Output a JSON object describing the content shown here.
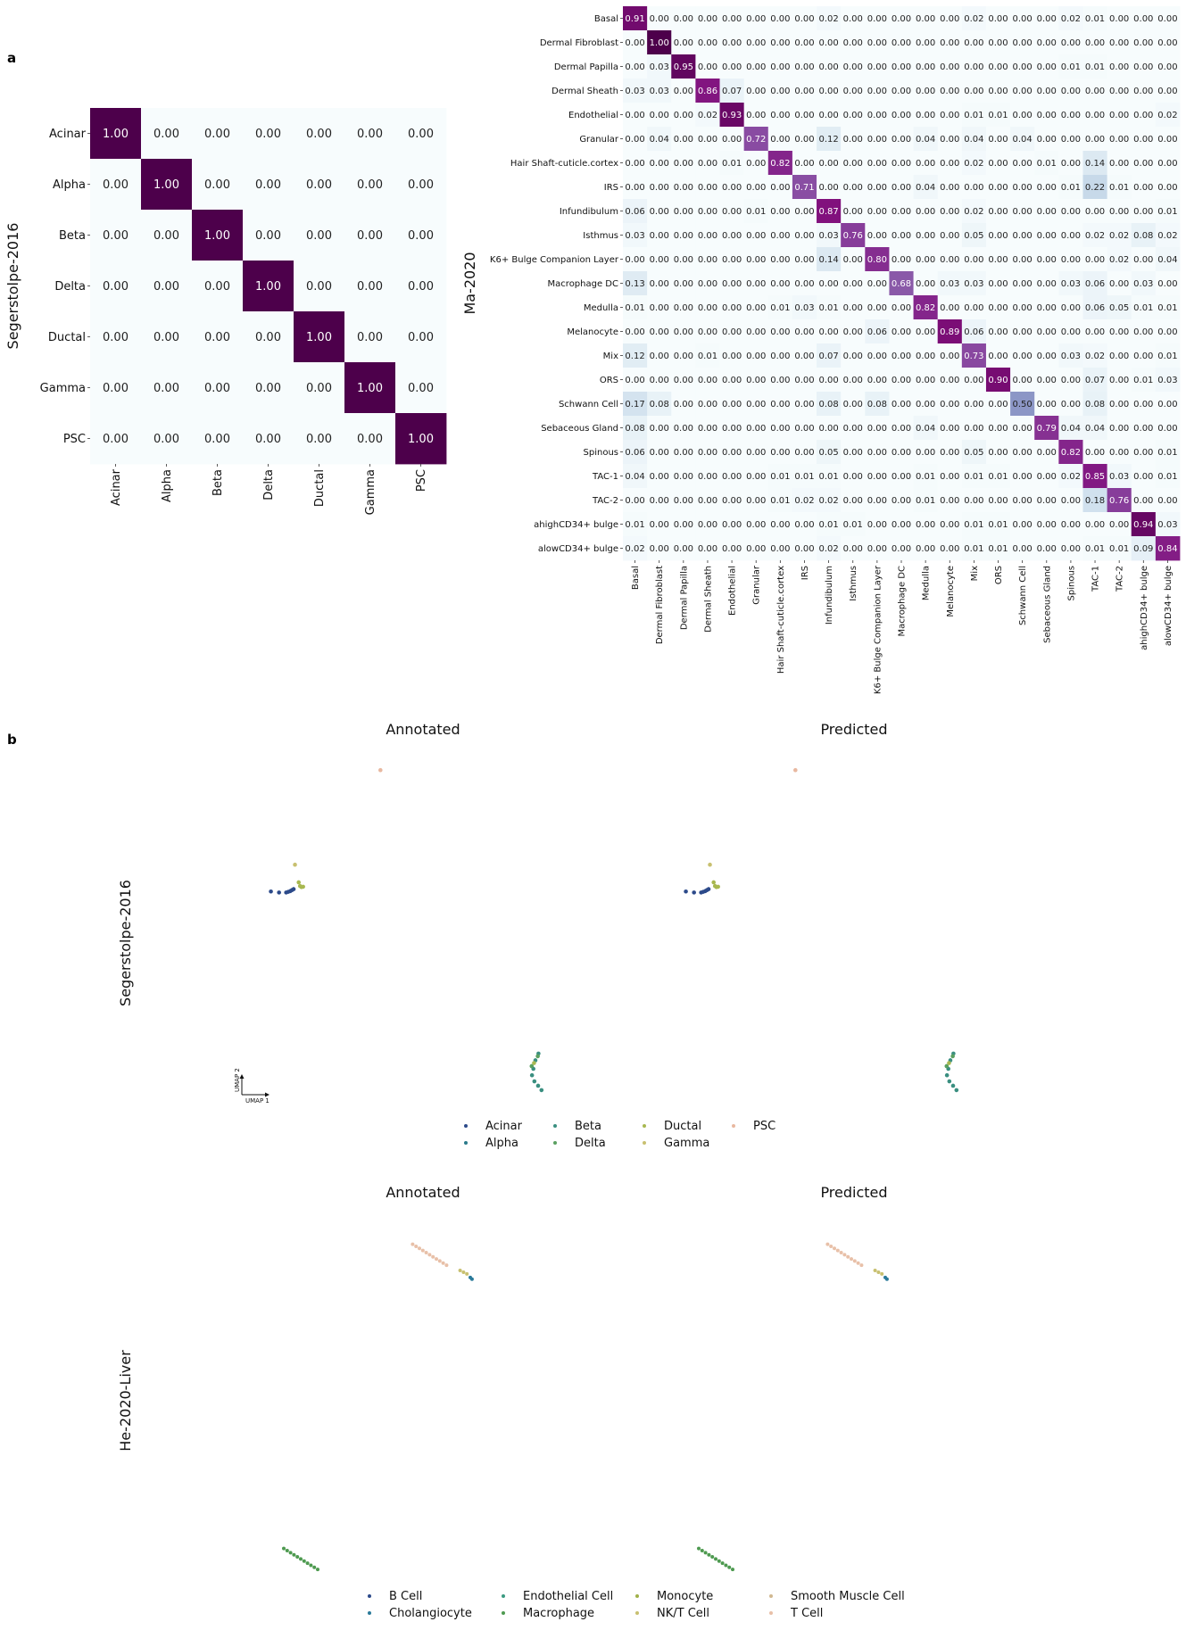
{
  "figure": {
    "panel_a_label": "a",
    "panel_b_label": "b"
  },
  "chart_data": [
    {
      "type": "heatmap",
      "id": "heatmap-segerstolpe",
      "ylabel": "Segerstolpe-2016",
      "rows": [
        "Acinar",
        "Alpha",
        "Beta",
        "Delta",
        "Ductal",
        "Gamma",
        "PSC"
      ],
      "cols": [
        "Acinar",
        "Alpha",
        "Beta",
        "Delta",
        "Ductal",
        "Gamma",
        "PSC"
      ],
      "values": [
        [
          1.0,
          0.0,
          0.0,
          0.0,
          0.0,
          0.0,
          0.0
        ],
        [
          0.0,
          1.0,
          0.0,
          0.0,
          0.0,
          0.0,
          0.0
        ],
        [
          0.0,
          0.0,
          1.0,
          0.0,
          0.0,
          0.0,
          0.0
        ],
        [
          0.0,
          0.0,
          0.0,
          1.0,
          0.0,
          0.0,
          0.0
        ],
        [
          0.0,
          0.0,
          0.0,
          0.0,
          1.0,
          0.0,
          0.0
        ],
        [
          0.0,
          0.0,
          0.0,
          0.0,
          0.0,
          1.0,
          0.0
        ],
        [
          0.0,
          0.0,
          0.0,
          0.0,
          0.0,
          0.0,
          1.0
        ]
      ],
      "colormap": [
        "#f7fcfd",
        "#e0ecf4",
        "#bfd3e6",
        "#9ebcda",
        "#8c96c6",
        "#8c6bb1",
        "#88419d",
        "#810f7c",
        "#4d004b"
      ]
    },
    {
      "type": "heatmap",
      "id": "heatmap-ma2020",
      "ylabel": "Ma-2020",
      "rows": [
        "Basal",
        "Dermal Fibroblast",
        "Dermal Papilla",
        "Dermal Sheath",
        "Endothelial",
        "Granular",
        "Hair Shaft-cuticle.cortex",
        "IRS",
        "Infundibulum",
        "Isthmus",
        "K6+ Bulge Companion Layer",
        "Macrophage DC",
        "Medulla",
        "Melanocyte",
        "Mix",
        "ORS",
        "Schwann Cell",
        "Sebaceous Gland",
        "Spinous",
        "TAC-1",
        "TAC-2",
        "ahighCD34+ bulge",
        "alowCD34+ bulge"
      ],
      "cols": [
        "Basal",
        "Dermal Fibroblast",
        "Dermal Papilla",
        "Dermal Sheath",
        "Endothelial",
        "Granular",
        "Hair Shaft-cuticle.cortex",
        "IRS",
        "Infundibulum",
        "Isthmus",
        "K6+ Bulge Companion Layer",
        "Macrophage DC",
        "Medulla",
        "Melanocyte",
        "Mix",
        "ORS",
        "Schwann Cell",
        "Sebaceous Gland",
        "Spinous",
        "TAC-1",
        "TAC-2",
        "ahighCD34+ bulge",
        "alowCD34+ bulge"
      ],
      "values": [
        [
          0.91,
          0.0,
          0.0,
          0.0,
          0.0,
          0.0,
          0.0,
          0.0,
          0.02,
          0.0,
          0.0,
          0.0,
          0.0,
          0.0,
          0.02,
          0.0,
          0.0,
          0.0,
          0.02,
          0.01,
          0.0,
          0.0,
          0.0
        ],
        [
          0.0,
          1.0,
          0.0,
          0.0,
          0.0,
          0.0,
          0.0,
          0.0,
          0.0,
          0.0,
          0.0,
          0.0,
          0.0,
          0.0,
          0.0,
          0.0,
          0.0,
          0.0,
          0.0,
          0.0,
          0.0,
          0.0,
          0.0
        ],
        [
          0.0,
          0.03,
          0.95,
          0.0,
          0.0,
          0.0,
          0.0,
          0.0,
          0.0,
          0.0,
          0.0,
          0.0,
          0.0,
          0.0,
          0.0,
          0.0,
          0.0,
          0.0,
          0.01,
          0.01,
          0.0,
          0.0,
          0.0
        ],
        [
          0.03,
          0.03,
          0.0,
          0.86,
          0.07,
          0.0,
          0.0,
          0.0,
          0.0,
          0.0,
          0.0,
          0.0,
          0.0,
          0.0,
          0.0,
          0.0,
          0.0,
          0.0,
          0.0,
          0.0,
          0.0,
          0.0,
          0.0
        ],
        [
          0.0,
          0.0,
          0.0,
          0.02,
          0.93,
          0.0,
          0.0,
          0.0,
          0.0,
          0.0,
          0.0,
          0.0,
          0.0,
          0.0,
          0.01,
          0.01,
          0.0,
          0.0,
          0.0,
          0.0,
          0.0,
          0.0,
          0.02
        ],
        [
          0.0,
          0.04,
          0.0,
          0.0,
          0.0,
          0.72,
          0.0,
          0.0,
          0.12,
          0.0,
          0.0,
          0.0,
          0.04,
          0.0,
          0.04,
          0.0,
          0.04,
          0.0,
          0.0,
          0.0,
          0.0,
          0.0,
          0.0
        ],
        [
          0.0,
          0.0,
          0.0,
          0.0,
          0.01,
          0.0,
          0.82,
          0.0,
          0.0,
          0.0,
          0.0,
          0.0,
          0.0,
          0.0,
          0.02,
          0.0,
          0.0,
          0.01,
          0.0,
          0.14,
          0.0,
          0.0,
          0.0
        ],
        [
          0.0,
          0.0,
          0.0,
          0.0,
          0.0,
          0.0,
          0.0,
          0.71,
          0.0,
          0.0,
          0.0,
          0.0,
          0.04,
          0.0,
          0.0,
          0.0,
          0.0,
          0.0,
          0.01,
          0.22,
          0.01,
          0.0,
          0.0
        ],
        [
          0.06,
          0.0,
          0.0,
          0.0,
          0.0,
          0.01,
          0.0,
          0.0,
          0.87,
          0.0,
          0.0,
          0.0,
          0.0,
          0.0,
          0.02,
          0.0,
          0.0,
          0.0,
          0.0,
          0.0,
          0.0,
          0.0,
          0.01
        ],
        [
          0.03,
          0.0,
          0.0,
          0.0,
          0.0,
          0.0,
          0.0,
          0.0,
          0.03,
          0.76,
          0.0,
          0.0,
          0.0,
          0.0,
          0.05,
          0.0,
          0.0,
          0.0,
          0.0,
          0.02,
          0.02,
          0.08,
          0.02
        ],
        [
          0.0,
          0.0,
          0.0,
          0.0,
          0.0,
          0.0,
          0.0,
          0.0,
          0.14,
          0.0,
          0.8,
          0.0,
          0.0,
          0.0,
          0.0,
          0.0,
          0.0,
          0.0,
          0.0,
          0.0,
          0.02,
          0.0,
          0.04
        ],
        [
          0.13,
          0.0,
          0.0,
          0.0,
          0.0,
          0.0,
          0.0,
          0.0,
          0.0,
          0.0,
          0.0,
          0.68,
          0.0,
          0.03,
          0.03,
          0.0,
          0.0,
          0.0,
          0.03,
          0.06,
          0.0,
          0.03,
          0.0
        ],
        [
          0.01,
          0.0,
          0.0,
          0.0,
          0.0,
          0.0,
          0.01,
          0.03,
          0.01,
          0.0,
          0.0,
          0.0,
          0.82,
          0.0,
          0.0,
          0.0,
          0.0,
          0.0,
          0.0,
          0.06,
          0.05,
          0.01,
          0.01
        ],
        [
          0.0,
          0.0,
          0.0,
          0.0,
          0.0,
          0.0,
          0.0,
          0.0,
          0.0,
          0.0,
          0.06,
          0.0,
          0.0,
          0.89,
          0.06,
          0.0,
          0.0,
          0.0,
          0.0,
          0.0,
          0.0,
          0.0,
          0.0
        ],
        [
          0.12,
          0.0,
          0.0,
          0.01,
          0.0,
          0.0,
          0.0,
          0.0,
          0.07,
          0.0,
          0.0,
          0.0,
          0.0,
          0.0,
          0.73,
          0.0,
          0.0,
          0.0,
          0.03,
          0.02,
          0.0,
          0.0,
          0.01
        ],
        [
          0.0,
          0.0,
          0.0,
          0.0,
          0.0,
          0.0,
          0.0,
          0.0,
          0.0,
          0.0,
          0.0,
          0.0,
          0.0,
          0.0,
          0.0,
          0.9,
          0.0,
          0.0,
          0.0,
          0.07,
          0.0,
          0.01,
          0.03
        ],
        [
          0.17,
          0.08,
          0.0,
          0.0,
          0.0,
          0.0,
          0.0,
          0.0,
          0.08,
          0.0,
          0.08,
          0.0,
          0.0,
          0.0,
          0.0,
          0.0,
          0.5,
          0.0,
          0.0,
          0.08,
          0.0,
          0.0,
          0.0
        ],
        [
          0.08,
          0.0,
          0.0,
          0.0,
          0.0,
          0.0,
          0.0,
          0.0,
          0.0,
          0.0,
          0.0,
          0.0,
          0.04,
          0.0,
          0.0,
          0.0,
          0.0,
          0.79,
          0.04,
          0.04,
          0.0,
          0.0,
          0.0
        ],
        [
          0.06,
          0.0,
          0.0,
          0.0,
          0.0,
          0.0,
          0.0,
          0.0,
          0.05,
          0.0,
          0.0,
          0.0,
          0.0,
          0.0,
          0.05,
          0.0,
          0.0,
          0.0,
          0.82,
          0.0,
          0.0,
          0.0,
          0.01
        ],
        [
          0.04,
          0.0,
          0.0,
          0.0,
          0.0,
          0.0,
          0.01,
          0.01,
          0.01,
          0.0,
          0.0,
          0.0,
          0.01,
          0.0,
          0.01,
          0.01,
          0.0,
          0.0,
          0.02,
          0.85,
          0.03,
          0.0,
          0.01
        ],
        [
          0.0,
          0.0,
          0.0,
          0.0,
          0.0,
          0.0,
          0.01,
          0.02,
          0.02,
          0.0,
          0.0,
          0.0,
          0.01,
          0.0,
          0.0,
          0.0,
          0.0,
          0.0,
          0.0,
          0.18,
          0.76,
          0.0,
          0.0
        ],
        [
          0.01,
          0.0,
          0.0,
          0.0,
          0.0,
          0.0,
          0.0,
          0.0,
          0.01,
          0.01,
          0.0,
          0.0,
          0.0,
          0.0,
          0.01,
          0.01,
          0.0,
          0.0,
          0.0,
          0.0,
          0.0,
          0.94,
          0.03
        ],
        [
          0.02,
          0.0,
          0.0,
          0.0,
          0.0,
          0.0,
          0.0,
          0.0,
          0.02,
          0.0,
          0.0,
          0.0,
          0.0,
          0.0,
          0.01,
          0.01,
          0.0,
          0.0,
          0.0,
          0.01,
          0.01,
          0.09,
          0.84
        ]
      ],
      "colormap": [
        "#f7fcfd",
        "#e0ecf4",
        "#bfd3e6",
        "#9ebcda",
        "#8c96c6",
        "#8c6bb1",
        "#88419d",
        "#810f7c",
        "#4d004b"
      ]
    },
    {
      "type": "scatter",
      "id": "umap-segerstolpe",
      "row_label": "Segerstolpe-2016",
      "panels": [
        {
          "title": "Annotated"
        },
        {
          "title": "Predicted"
        }
      ],
      "axis_hint": {
        "x": "UMAP 1",
        "y": "UMAP 2"
      },
      "xlim": [
        0,
        100
      ],
      "ylim": [
        0,
        100
      ],
      "legend": [
        {
          "name": "Acinar",
          "color": "#2c4a8a"
        },
        {
          "name": "Alpha",
          "color": "#2a7a8a"
        },
        {
          "name": "Beta",
          "color": "#3a8f80"
        },
        {
          "name": "Delta",
          "color": "#5aa060"
        },
        {
          "name": "Ductal",
          "color": "#a8b850"
        },
        {
          "name": "Gamma",
          "color": "#c8c070"
        },
        {
          "name": "PSC",
          "color": "#e8b8a0"
        }
      ],
      "clusters": [
        {
          "group": "PSC",
          "points": [
            [
              38.5,
              96.0
            ]
          ]
        },
        {
          "group": "Ductal",
          "points": [
            [
              14.4,
              62.9
            ],
            [
              14.8,
              61.8
            ],
            [
              15.2,
              61.5
            ],
            [
              15.7,
              61.6
            ]
          ]
        },
        {
          "group": "Gamma",
          "points": [
            [
              13.3,
              68.1
            ]
          ]
        },
        {
          "group": "Acinar",
          "points": [
            [
              6.2,
              60.2
            ],
            [
              8.6,
              59.9
            ],
            [
              10.7,
              59.9
            ],
            [
              11.3,
              60.1
            ],
            [
              11.9,
              60.3
            ],
            [
              12.4,
              60.6
            ],
            [
              12.9,
              60.9
            ]
          ]
        },
        {
          "group": "Beta",
          "points": [
            [
              85.1,
              12.4
            ],
            [
              84.2,
              10.4
            ],
            [
              83.6,
              7.9
            ],
            [
              83.2,
              6.0
            ],
            [
              83.9,
              4.2
            ],
            [
              85.0,
              2.9
            ],
            [
              86.0,
              1.6
            ]
          ]
        },
        {
          "group": "Delta",
          "points": [
            [
              83.1,
              8.7
            ],
            [
              84.9,
              11.6
            ]
          ]
        },
        {
          "group": "Ductal",
          "points": [
            [
              83.8,
              9.6
            ]
          ]
        }
      ]
    },
    {
      "type": "scatter",
      "id": "umap-he2020",
      "row_label": "He-2020-Liver",
      "panels": [
        {
          "title": "Annotated"
        },
        {
          "title": "Predicted"
        }
      ],
      "xlim": [
        0,
        100
      ],
      "ylim": [
        0,
        100
      ],
      "legend": [
        {
          "name": "B Cell",
          "color": "#2c4a8a"
        },
        {
          "name": "Cholangiocyte",
          "color": "#2a7a9a"
        },
        {
          "name": "Endothelial Cell",
          "color": "#3a9a80"
        },
        {
          "name": "Macrophage",
          "color": "#4e9a50"
        },
        {
          "name": "Monocyte",
          "color": "#a0b048"
        },
        {
          "name": "NK/T Cell",
          "color": "#c8c070"
        },
        {
          "name": "Smooth Muscle Cell",
          "color": "#d0b890"
        },
        {
          "name": "T Cell",
          "color": "#e8c0a8"
        }
      ],
      "clusters": [
        {
          "group": "T Cell",
          "points": [
            [
              48.0,
              95.0
            ],
            [
              49.0,
              94.4
            ],
            [
              50.0,
              93.8
            ],
            [
              51.0,
              93.2
            ],
            [
              52.0,
              92.6
            ],
            [
              53.0,
              92.0
            ],
            [
              54.0,
              91.4
            ],
            [
              55.0,
              90.8
            ],
            [
              56.0,
              90.2
            ],
            [
              57.0,
              89.6
            ],
            [
              58.0,
              89.0
            ]
          ]
        },
        {
          "group": "NK/T Cell",
          "points": [
            [
              62.0,
              87.5
            ],
            [
              63.0,
              87.0
            ],
            [
              64.0,
              86.5
            ]
          ]
        },
        {
          "group": "Cholangiocyte",
          "points": [
            [
              65.0,
              85.5
            ],
            [
              65.5,
              85.0
            ]
          ]
        },
        {
          "group": "Macrophage",
          "points": [
            [
              10.0,
              8.0
            ],
            [
              11.0,
              7.4
            ],
            [
              12.0,
              6.8
            ],
            [
              13.0,
              6.2
            ],
            [
              14.0,
              5.6
            ],
            [
              15.0,
              5.0
            ],
            [
              16.0,
              4.4
            ],
            [
              17.0,
              3.8
            ],
            [
              18.0,
              3.2
            ],
            [
              19.0,
              2.6
            ],
            [
              20.0,
              2.0
            ]
          ]
        }
      ]
    }
  ]
}
